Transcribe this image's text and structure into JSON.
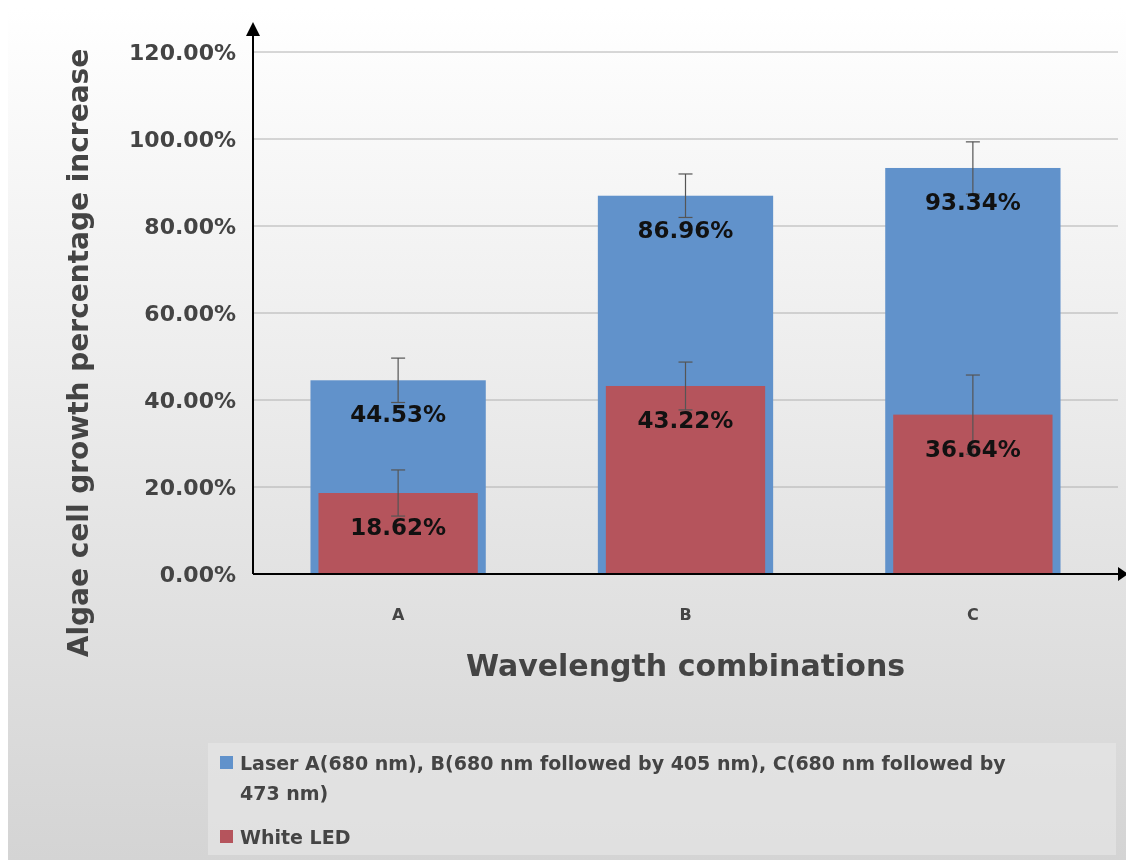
{
  "chart_data": {
    "type": "bar",
    "xlabel": "Wavelength combinations",
    "ylabel": "Algae cell growth percentage increase",
    "categories": [
      "A",
      "B",
      "C"
    ],
    "series": [
      {
        "name": "Laser A(680 nm), B(680 nm followed by 405 nm), C(680 nm followed by 473 nm)",
        "color": "#6192cb",
        "values": [
          44.53,
          86.96,
          93.34
        ],
        "errors": [
          5.1,
          5.0,
          6.0
        ],
        "value_labels": [
          "44.53%",
          "86.96%",
          "93.34%"
        ]
      },
      {
        "name": "White LED",
        "color": "#b5545c",
        "values": [
          18.62,
          43.22,
          36.64
        ],
        "errors": [
          5.3,
          5.5,
          9.1
        ],
        "value_labels": [
          "18.62%",
          "43.22%",
          "36.64%"
        ]
      }
    ],
    "ylim": [
      0,
      120
    ],
    "yticks": [
      {
        "value": 0,
        "label": "0.00%"
      },
      {
        "value": 20,
        "label": "20.00%"
      },
      {
        "value": 40,
        "label": "40.00%"
      },
      {
        "value": 60,
        "label": "60.00%"
      },
      {
        "value": 80,
        "label": "80.00%"
      },
      {
        "value": 100,
        "label": "100.00%"
      },
      {
        "value": 120,
        "label": "120.00%"
      }
    ],
    "grid": "y",
    "legend": "bottom"
  }
}
